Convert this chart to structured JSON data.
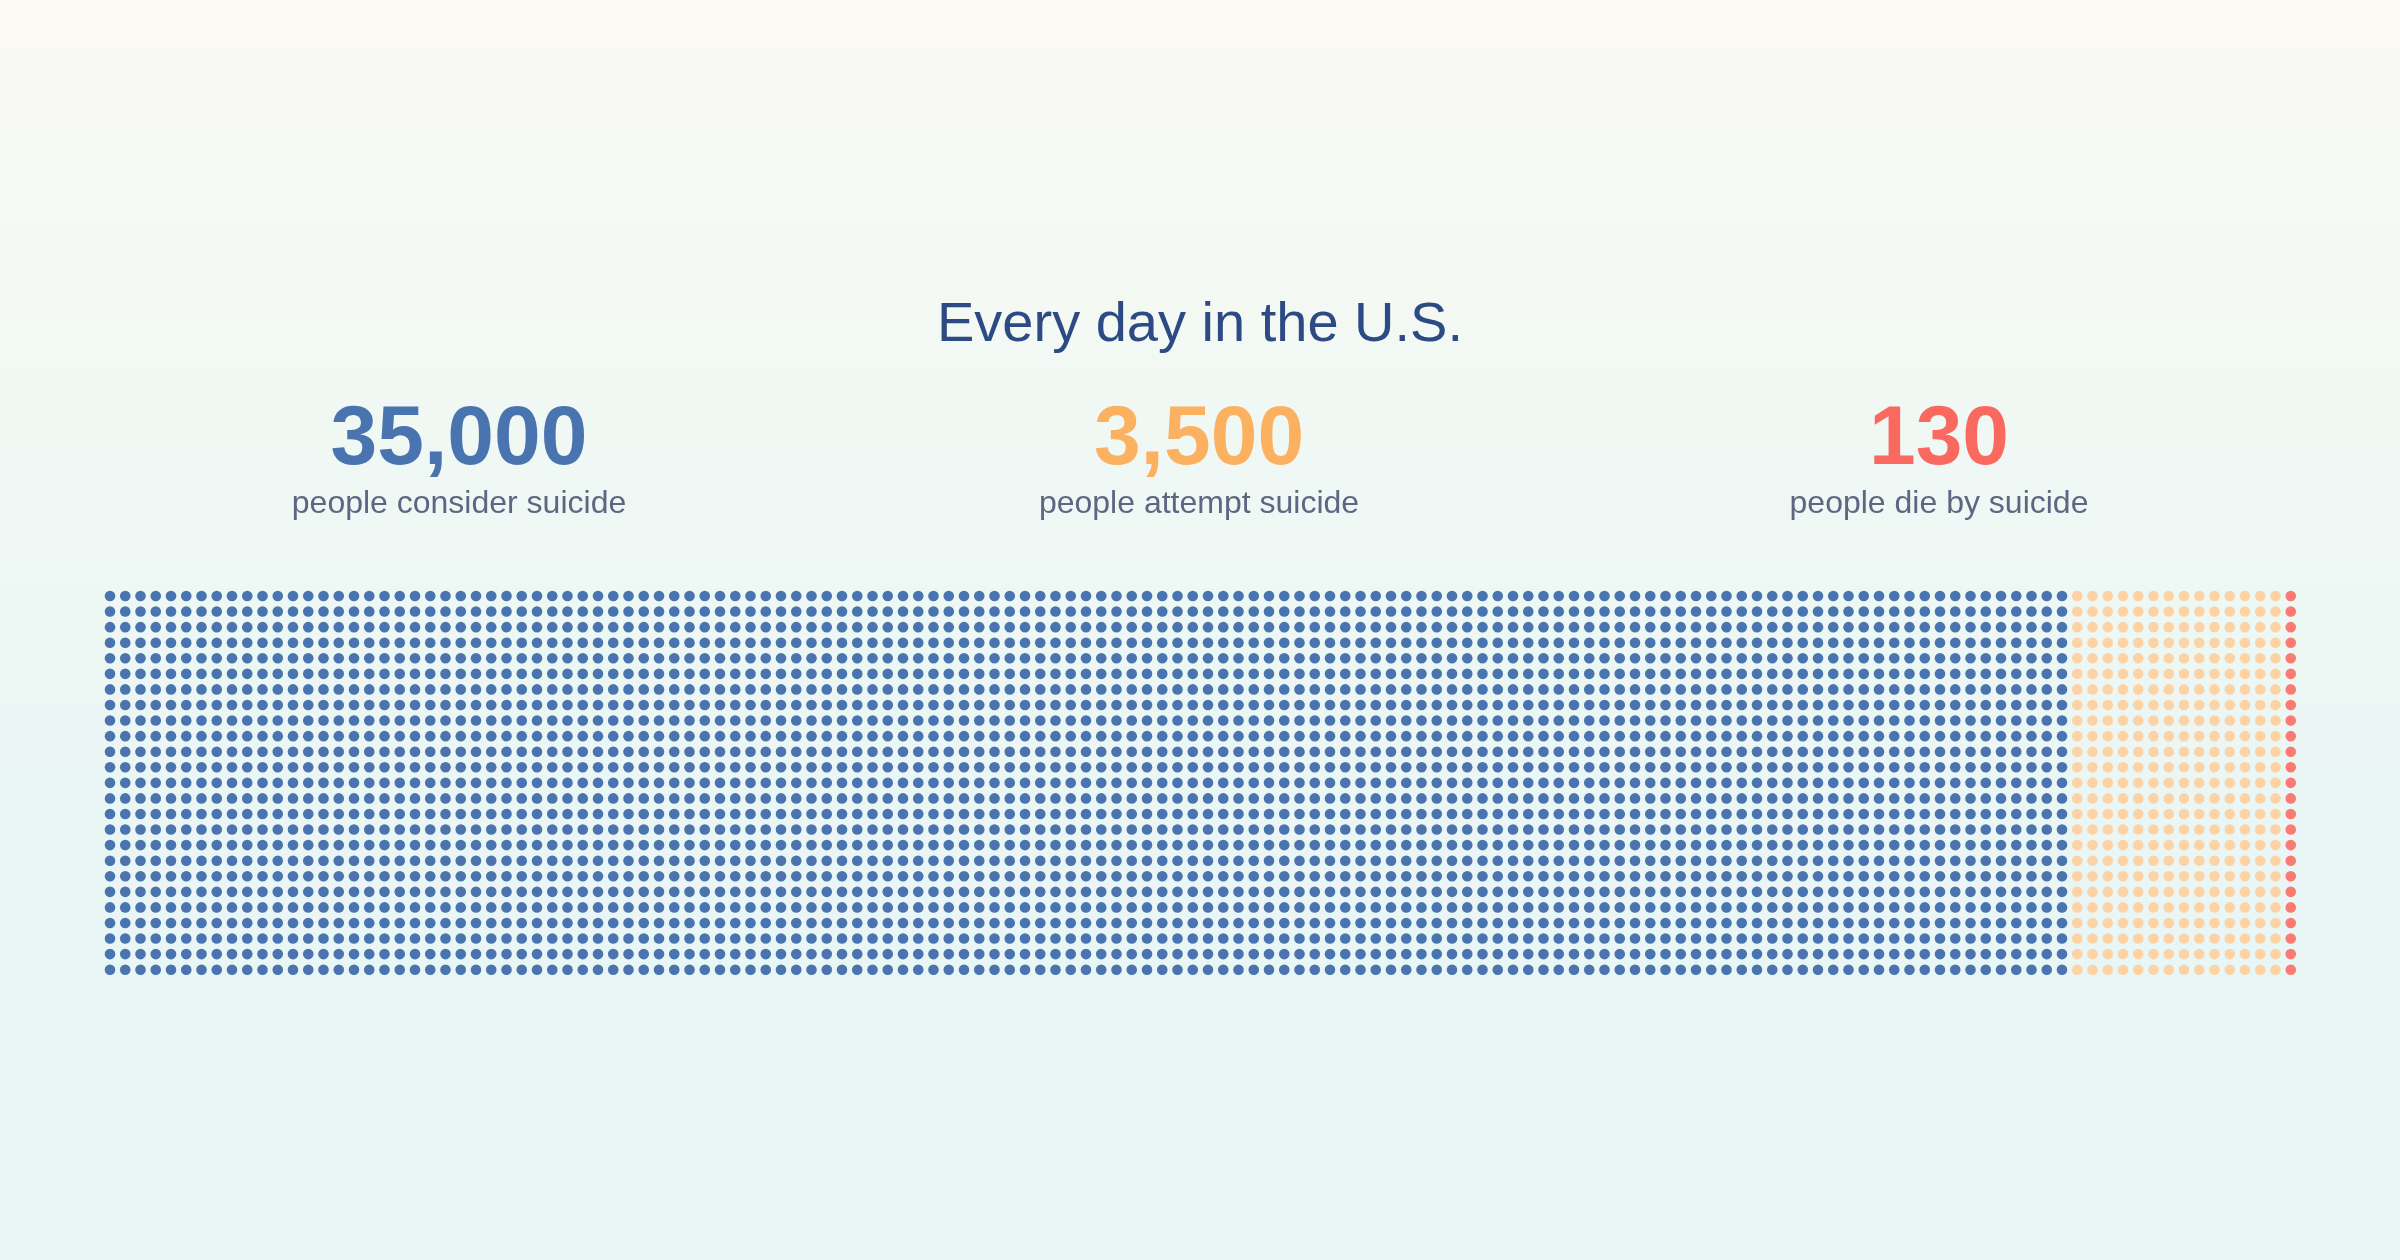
{
  "chart_data": {
    "type": "other",
    "title": "Every day in the U.S.",
    "categories": [
      "people consider suicide",
      "people attempt suicide",
      "people die by suicide"
    ],
    "values": [
      35000,
      3500,
      130
    ],
    "value_labels": [
      "35,000",
      "3,500",
      "130"
    ],
    "colors": [
      "#4a74b0",
      "#fdd3a5",
      "#fb7a72"
    ]
  }
}
